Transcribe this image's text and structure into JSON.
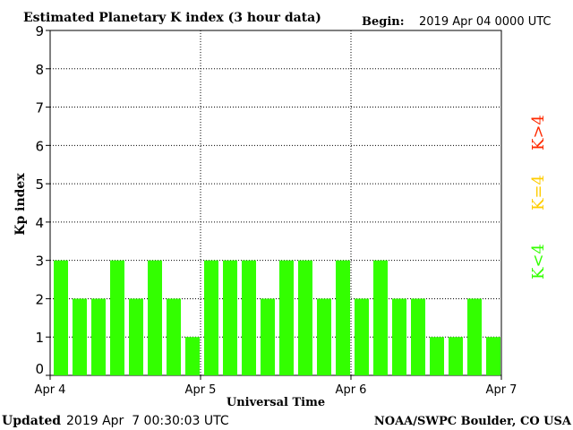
{
  "header": {
    "title": "Estimated Planetary K index (3 hour data)",
    "begin_label": "Begin:",
    "begin_value": "2019 Apr 04 0000 UTC"
  },
  "footer": {
    "updated_label": "Updated",
    "updated_value": "2019 Apr  7 00:30:03 UTC",
    "credit": "NOAA/SWPC Boulder, CO USA"
  },
  "legend": {
    "high": {
      "label": "K>4",
      "color": "#ff2a00"
    },
    "mid": {
      "label": "K=4",
      "color": "#ffcc00"
    },
    "low": {
      "label": "K<4",
      "color": "#33ff00"
    }
  },
  "chart_data": {
    "type": "bar",
    "title": "Estimated Planetary K index (3 hour data)",
    "xlabel": "Universal Time",
    "ylabel": "Kp index",
    "ylim": [
      0,
      9
    ],
    "yticks": [
      "0",
      "1",
      "2",
      "3",
      "4",
      "5",
      "6",
      "7",
      "8",
      "9"
    ],
    "x_tick_labels": [
      "Apr 4",
      "Apr 5",
      "Apr 6",
      "Apr 7"
    ],
    "grid": true,
    "bar_color": "#33ff00",
    "values": [
      3,
      2,
      2,
      3,
      2,
      3,
      2,
      1,
      3,
      3,
      3,
      2,
      3,
      3,
      2,
      3,
      2,
      3,
      2,
      2,
      1,
      1,
      2,
      1
    ]
  }
}
